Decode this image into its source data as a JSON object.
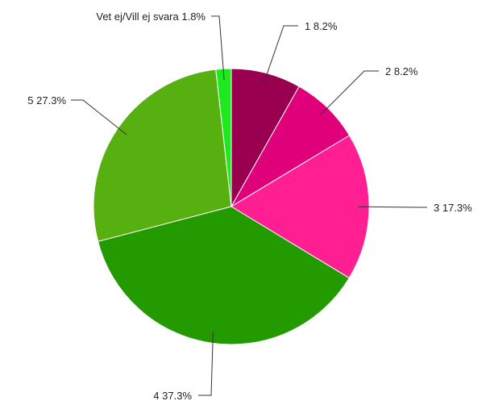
{
  "chart_data": {
    "type": "pie",
    "title": "",
    "slices": [
      {
        "name": "1",
        "value": 8.2,
        "label": "1 8.2%",
        "color": "#990050"
      },
      {
        "name": "2",
        "value": 8.2,
        "label": "2 8.2%",
        "color": "#e0007a"
      },
      {
        "name": "3",
        "value": 17.3,
        "label": "3 17.3%",
        "color": "#ff1f92"
      },
      {
        "name": "4",
        "value": 37.3,
        "label": "4 37.3%",
        "color": "#229a00"
      },
      {
        "name": "5",
        "value": 27.3,
        "label": "5 27.3%",
        "color": "#56b010"
      },
      {
        "name": "Vet ej/Vill ej svara",
        "value": 1.8,
        "label": "Vet ej/Vill ej svara 1.8%",
        "color": "#1ee81e"
      }
    ],
    "start": "top",
    "direction": "clockwise",
    "legend": "none"
  }
}
